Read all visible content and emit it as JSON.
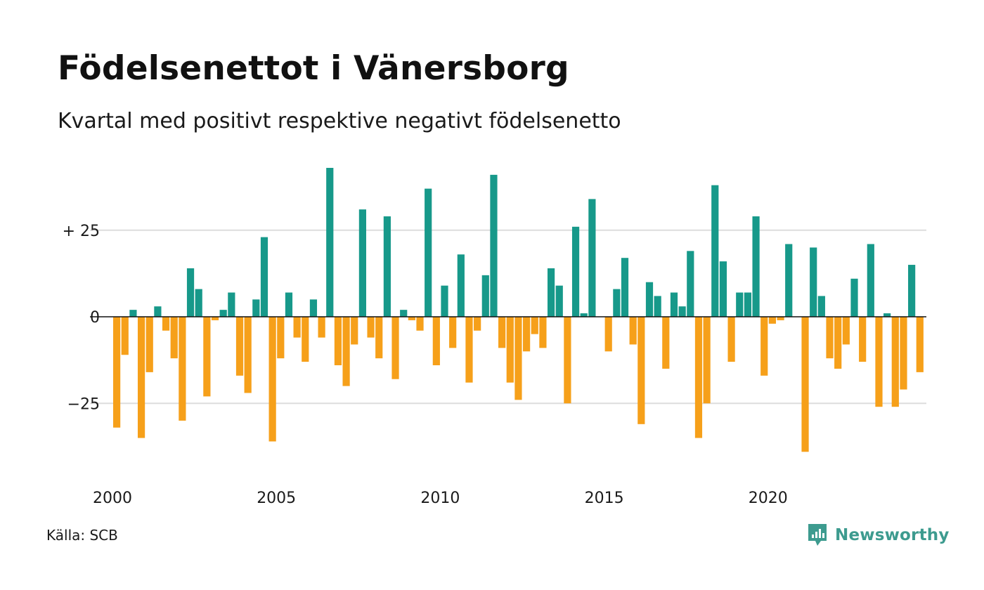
{
  "header": {
    "title": "Födelsenettot i Vänersborg",
    "subtitle": "Kvartal med positivt respektive negativt födelsenetto"
  },
  "footer": {
    "source": "Källa: SCB",
    "brand": "Newsworthy",
    "brand_icon": "newsworthy-logo-icon"
  },
  "colors": {
    "positive": "#17998a",
    "negative": "#f6a01a",
    "gridline": "#dddddd",
    "zero_line": "#111111",
    "brand": "#3d9b8f"
  },
  "chart_data": {
    "type": "bar",
    "title": "Födelsenettot i Vänersborg",
    "subtitle": "Kvartal med positivt respektive negativt födelsenetto",
    "xlabel": "",
    "ylabel": "",
    "ylim": [
      -45,
      45
    ],
    "grid": true,
    "y_ticks": [
      {
        "value": 25,
        "label": "+ 25"
      },
      {
        "value": 0,
        "label": "0"
      },
      {
        "value": -25,
        "label": "−25"
      }
    ],
    "x_ticks": [
      {
        "value": 2000,
        "label": "2000"
      },
      {
        "value": 2005,
        "label": "2005"
      },
      {
        "value": 2010,
        "label": "2010"
      },
      {
        "value": 2015,
        "label": "2015"
      },
      {
        "value": 2020,
        "label": "2020"
      }
    ],
    "categories": [
      "2000 Q1",
      "2000 Q2",
      "2000 Q3",
      "2000 Q4",
      "2001 Q1",
      "2001 Q2",
      "2001 Q3",
      "2001 Q4",
      "2002 Q1",
      "2002 Q2",
      "2002 Q3",
      "2002 Q4",
      "2003 Q1",
      "2003 Q2",
      "2003 Q3",
      "2003 Q4",
      "2004 Q1",
      "2004 Q2",
      "2004 Q3",
      "2004 Q4",
      "2005 Q1",
      "2005 Q2",
      "2005 Q3",
      "2005 Q4",
      "2006 Q1",
      "2006 Q2",
      "2006 Q3",
      "2006 Q4",
      "2007 Q1",
      "2007 Q2",
      "2007 Q3",
      "2007 Q4",
      "2008 Q1",
      "2008 Q2",
      "2008 Q3",
      "2008 Q4",
      "2009 Q1",
      "2009 Q2",
      "2009 Q3",
      "2009 Q4",
      "2010 Q1",
      "2010 Q2",
      "2010 Q3",
      "2010 Q4",
      "2011 Q1",
      "2011 Q2",
      "2011 Q3",
      "2011 Q4",
      "2012 Q1",
      "2012 Q2",
      "2012 Q3",
      "2012 Q4",
      "2013 Q1",
      "2013 Q2",
      "2013 Q3",
      "2013 Q4",
      "2014 Q1",
      "2014 Q2",
      "2014 Q3",
      "2014 Q4",
      "2015 Q1",
      "2015 Q2",
      "2015 Q3",
      "2015 Q4",
      "2016 Q1",
      "2016 Q2",
      "2016 Q3",
      "2016 Q4",
      "2017 Q1",
      "2017 Q2",
      "2017 Q3",
      "2017 Q4",
      "2018 Q1",
      "2018 Q2",
      "2018 Q3",
      "2018 Q4",
      "2019 Q1",
      "2019 Q2",
      "2019 Q3",
      "2019 Q4",
      "2020 Q1",
      "2020 Q2",
      "2020 Q3",
      "2020 Q4",
      "2021 Q1",
      "2021 Q2",
      "2021 Q3",
      "2021 Q4",
      "2022 Q1",
      "2022 Q2",
      "2022 Q3",
      "2022 Q4",
      "2023 Q1",
      "2023 Q2",
      "2023 Q3",
      "2023 Q4",
      "2024 Q1",
      "2024 Q2",
      "2024 Q3",
      "2024 Q4"
    ],
    "values": [
      -32,
      -11,
      2,
      -35,
      -16,
      3,
      -4,
      -12,
      -30,
      14,
      8,
      -23,
      -1,
      2,
      7,
      -17,
      -22,
      5,
      23,
      -36,
      -12,
      7,
      -6,
      -13,
      5,
      -6,
      43,
      -14,
      -20,
      -8,
      31,
      -6,
      -12,
      29,
      -18,
      2,
      -1,
      -4,
      37,
      -14,
      9,
      -9,
      18,
      -19,
      -4,
      12,
      41,
      -9,
      -19,
      -24,
      -10,
      -5,
      -9,
      14,
      9,
      -25,
      26,
      1,
      34,
      0,
      -10,
      8,
      17,
      -8,
      -31,
      10,
      6,
      -15,
      7,
      3,
      19,
      -35,
      -25,
      38,
      16,
      -13,
      7,
      7,
      29,
      -17,
      -2,
      -1,
      21,
      0,
      -39,
      20,
      6,
      -12,
      -15,
      -8,
      11,
      -13,
      21,
      -26,
      1,
      -26,
      -21,
      15,
      -16,
      0
    ]
  }
}
